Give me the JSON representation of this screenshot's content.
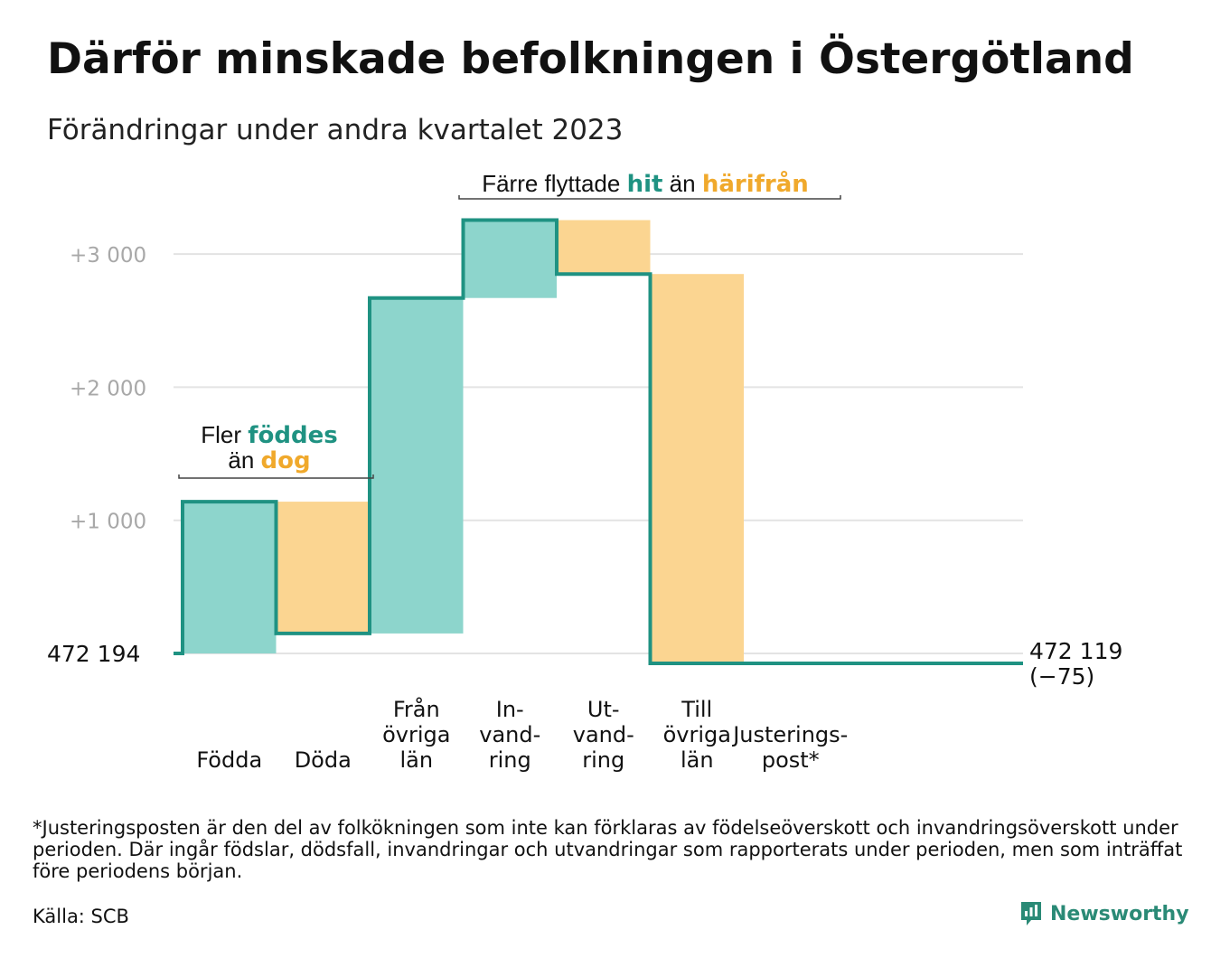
{
  "header": {
    "title": "Därför minskade befolkningen i Östergötland",
    "subtitle": "Förändringar under andra kvartalet 2023"
  },
  "footer": {
    "footnote": "*Justeringsposten är den del av folkökningen som inte kan förklaras av födelseöverskott och invandringsöverskott under perioden. Där ingår födslar, dödsfall, invandringar och utvandringar som rapporterats under perioden, men som inträffat före periodens början.",
    "source": "Källa: SCB",
    "brand": "Newsworthy"
  },
  "colors": {
    "inflow": "#8dd5cc",
    "outflow": "#fbd591",
    "line": "#1f9282",
    "accent_teal": "#1f9282",
    "accent_orange": "#f0a92c",
    "grid": "#e3e3e3",
    "tick_text": "#a8a8a8"
  },
  "chart_data": {
    "type": "waterfall",
    "start_label": "472   194",
    "end_label": "472 119",
    "end_change_label": "(−75)",
    "start_value": 472194,
    "end_value": 472119,
    "yticks": [
      {
        "value": 1000,
        "label": "+1   000"
      },
      {
        "value": 2000,
        "label": "+2   000"
      },
      {
        "value": 3000,
        "label": "+3   000"
      }
    ],
    "ylim": [
      -75,
      3250
    ],
    "steps": [
      {
        "label": [
          "Födda"
        ],
        "change": 1140,
        "kind": "inflow"
      },
      {
        "label": [
          "Döda"
        ],
        "change": -990,
        "kind": "outflow"
      },
      {
        "label": [
          "Från",
          "övriga",
          "län"
        ],
        "change": 2520,
        "kind": "inflow"
      },
      {
        "label": [
          "In-",
          "vand-",
          "ring"
        ],
        "change": 585,
        "kind": "inflow"
      },
      {
        "label": [
          "Ut-",
          "vand-",
          "ring"
        ],
        "change": -405,
        "kind": "outflow"
      },
      {
        "label": [
          "Till",
          "övriga",
          "län"
        ],
        "change": -2925,
        "kind": "outflow"
      },
      {
        "label": [
          "Justerings-",
          "post*"
        ],
        "change": 0,
        "kind": "adjustment"
      }
    ],
    "annotations": [
      {
        "lines": [
          [
            {
              "text": "Fler ",
              "style": "plain"
            },
            {
              "text": "föddes",
              "style": "teal"
            }
          ],
          [
            {
              "text": "än ",
              "style": "plain"
            },
            {
              "text": "dog",
              "style": "orange"
            }
          ]
        ]
      },
      {
        "lines": [
          [
            {
              "text": "Färre flyttade ",
              "style": "plain"
            },
            {
              "text": "hit",
              "style": "teal"
            },
            {
              "text": "  än ",
              "style": "plain"
            },
            {
              "text": "härifrån",
              "style": "orange"
            }
          ]
        ]
      }
    ]
  }
}
